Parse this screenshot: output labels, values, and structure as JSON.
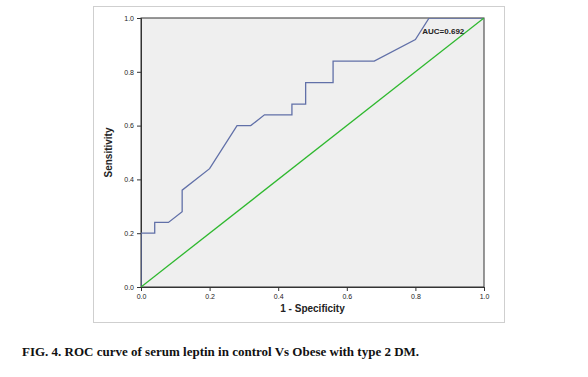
{
  "chart_data": {
    "type": "line",
    "title": "FIG. 4. ROC curve of serum leptin in control Vs Obese with type 2 DM.",
    "x_label": "1 - Specificity",
    "y_label": "Sensitivity",
    "annotation": "AUC=0.692",
    "xlim": [
      0,
      1
    ],
    "ylim": [
      0,
      1
    ],
    "xticks": [
      {
        "value": 0,
        "label": "0.0"
      },
      {
        "value": 0.2,
        "label": "0.2"
      },
      {
        "value": 0.4,
        "label": "0.4"
      },
      {
        "value": 0.6,
        "label": "0.6"
      },
      {
        "value": 0.8,
        "label": "0.8"
      },
      {
        "value": 1,
        "label": "1.0"
      }
    ],
    "yticks": [
      {
        "value": 0,
        "label": "0.0"
      },
      {
        "value": 0.2,
        "label": "0.2"
      },
      {
        "value": 0.4,
        "label": "0.4"
      },
      {
        "value": 0.6,
        "label": "0.6"
      },
      {
        "value": 0.8,
        "label": "0.8"
      },
      {
        "value": 1,
        "label": "1.0"
      }
    ],
    "grid": false,
    "series": [
      {
        "color": "#6170a8",
        "x": [
          0,
          0,
          0.04,
          0.04,
          0.08,
          0.12,
          0.12,
          0.2,
          0.28,
          0.32,
          0.36,
          0.44,
          0.44,
          0.48,
          0.48,
          0.56,
          0.56,
          0.68,
          0.8,
          0.8,
          0.84,
          1
        ],
        "values": [
          0,
          0.2,
          0.2,
          0.24,
          0.24,
          0.28,
          0.36,
          0.44,
          0.6,
          0.6,
          0.64,
          0.64,
          0.68,
          0.68,
          0.76,
          0.76,
          0.84,
          0.84,
          0.92,
          0.92,
          1,
          1
        ]
      },
      {
        "color": "#2eb82e",
        "x": [
          0,
          1
        ],
        "values": [
          0,
          1
        ]
      }
    ]
  }
}
